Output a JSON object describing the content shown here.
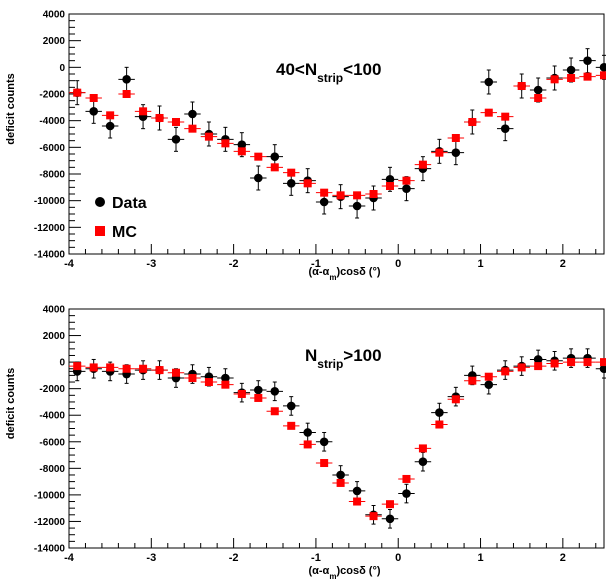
{
  "chart_data": [
    {
      "type": "scatter",
      "title_parts": {
        "pre": "40<N",
        "sub": "strip",
        "post": "<100"
      },
      "xlabel_parts": {
        "a": "(α-α",
        "sub": "m",
        "b": ")cosδ (°)"
      },
      "ylabel": "deficit counts",
      "xlim": [
        -4,
        2.5
      ],
      "ylim": [
        -14000,
        4000
      ],
      "xticks": [
        -4,
        -3,
        -2,
        -1,
        0,
        1,
        2
      ],
      "yticks": [
        -14000,
        -12000,
        -10000,
        -8000,
        -6000,
        -4000,
        -2000,
        0,
        2000,
        4000
      ],
      "legend": {
        "placement": "lower-left",
        "entries": [
          "Data",
          "MC"
        ]
      },
      "series": [
        {
          "name": "Data",
          "color": "#000000",
          "marker": "circle",
          "x": [
            -3.9,
            -3.7,
            -3.5,
            -3.3,
            -3.1,
            -2.9,
            -2.7,
            -2.5,
            -2.3,
            -2.1,
            -1.9,
            -1.7,
            -1.5,
            -1.3,
            -1.1,
            -0.9,
            -0.7,
            -0.5,
            -0.3,
            -0.1,
            0.1,
            0.3,
            0.5,
            0.7,
            0.9,
            1.1,
            1.3,
            1.5,
            1.7,
            1.9,
            2.1,
            2.3,
            2.5
          ],
          "y": [
            -1900,
            -3300,
            -4400,
            -900,
            -3700,
            -3800,
            -5400,
            -3500,
            -5000,
            -5400,
            -5800,
            -8300,
            -6700,
            -8700,
            -8500,
            -10100,
            -9700,
            -10400,
            -9800,
            -8400,
            -9100,
            -7600,
            -6300,
            -6400,
            -4100,
            -1100,
            -4600,
            -1400,
            -1700,
            -800,
            -200,
            500,
            0
          ],
          "yerr": 900
        },
        {
          "name": "MC",
          "color": "#ff0000",
          "marker": "square",
          "x": [
            -3.9,
            -3.7,
            -3.5,
            -3.3,
            -3.1,
            -2.9,
            -2.7,
            -2.5,
            -2.3,
            -2.1,
            -1.9,
            -1.7,
            -1.5,
            -1.3,
            -1.1,
            -0.9,
            -0.7,
            -0.5,
            -0.3,
            -0.1,
            0.1,
            0.3,
            0.5,
            0.7,
            0.9,
            1.1,
            1.3,
            1.5,
            1.7,
            1.9,
            2.1,
            2.3,
            2.5
          ],
          "y": [
            -1900,
            -2300,
            -3600,
            -2000,
            -3300,
            -3800,
            -4100,
            -4600,
            -5200,
            -5700,
            -6300,
            -6700,
            -7500,
            -7900,
            -8700,
            -9400,
            -9600,
            -9600,
            -9500,
            -8900,
            -8500,
            -7300,
            -6400,
            -5300,
            -4100,
            -3400,
            -3700,
            -1400,
            -2300,
            -900,
            -800,
            -700,
            -600
          ]
        }
      ]
    },
    {
      "type": "scatter",
      "title_parts": {
        "pre": "N",
        "sub": "strip",
        "post": ">100"
      },
      "xlabel_parts": {
        "a": "(α-α",
        "sub": "m",
        "b": ")cosδ (°)"
      },
      "ylabel": "deficit counts",
      "xlim": [
        -4,
        2.5
      ],
      "ylim": [
        -14000,
        4000
      ],
      "xticks": [
        -4,
        -3,
        -2,
        -1,
        0,
        1,
        2
      ],
      "yticks": [
        -14000,
        -12000,
        -10000,
        -8000,
        -6000,
        -4000,
        -2000,
        0,
        2000,
        4000
      ],
      "series": [
        {
          "name": "Data",
          "color": "#000000",
          "marker": "circle",
          "x": [
            -3.9,
            -3.7,
            -3.5,
            -3.3,
            -3.1,
            -2.9,
            -2.7,
            -2.5,
            -2.3,
            -2.1,
            -1.9,
            -1.7,
            -1.5,
            -1.3,
            -1.1,
            -0.9,
            -0.7,
            -0.5,
            -0.3,
            -0.1,
            0.1,
            0.3,
            0.5,
            0.7,
            0.9,
            1.1,
            1.3,
            1.5,
            1.7,
            1.9,
            2.1,
            2.3,
            2.5
          ],
          "y": [
            -700,
            -500,
            -700,
            -900,
            -600,
            -600,
            -1200,
            -900,
            -1100,
            -1200,
            -2300,
            -2100,
            -2200,
            -3300,
            -5300,
            -6000,
            -8500,
            -9700,
            -11500,
            -11800,
            -9900,
            -7500,
            -3800,
            -2600,
            -1000,
            -1700,
            -600,
            -300,
            200,
            100,
            300,
            300,
            -500
          ],
          "yerr": 700
        },
        {
          "name": "MC",
          "color": "#ff0000",
          "marker": "square",
          "x": [
            -3.9,
            -3.7,
            -3.5,
            -3.3,
            -3.1,
            -2.9,
            -2.7,
            -2.5,
            -2.3,
            -2.1,
            -1.9,
            -1.7,
            -1.5,
            -1.3,
            -1.1,
            -0.9,
            -0.7,
            -0.5,
            -0.3,
            -0.1,
            0.1,
            0.3,
            0.5,
            0.7,
            0.9,
            1.1,
            1.3,
            1.5,
            1.7,
            1.9,
            2.1,
            2.3,
            2.5
          ],
          "y": [
            -300,
            -400,
            -400,
            -500,
            -500,
            -600,
            -800,
            -1200,
            -1500,
            -1700,
            -2400,
            -2700,
            -3700,
            -4800,
            -6200,
            -7600,
            -9100,
            -10500,
            -11600,
            -10700,
            -8800,
            -6500,
            -4700,
            -2800,
            -1400,
            -1100,
            -700,
            -400,
            -300,
            -100,
            0,
            0,
            0
          ]
        }
      ]
    }
  ]
}
